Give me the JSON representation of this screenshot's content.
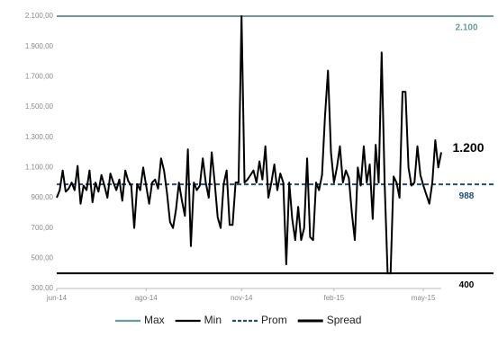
{
  "chart_data": {
    "type": "line",
    "categories": [
      "jun-14",
      null,
      null,
      null,
      null,
      null,
      null,
      null,
      null,
      null,
      null,
      null,
      null,
      null,
      null,
      null,
      null,
      null,
      null,
      null,
      null,
      null,
      null,
      null,
      null,
      null,
      null,
      null,
      null,
      null,
      "ago-14",
      null,
      null,
      null,
      null,
      null,
      null,
      null,
      null,
      null,
      null,
      null,
      null,
      null,
      null,
      null,
      null,
      null,
      null,
      null,
      null,
      null,
      null,
      null,
      null,
      null,
      null,
      null,
      null,
      null,
      null,
      null,
      "nov-14",
      null,
      null,
      null,
      null,
      null,
      null,
      null,
      null,
      null,
      null,
      null,
      null,
      null,
      null,
      null,
      null,
      null,
      null,
      null,
      null,
      null,
      null,
      null,
      null,
      null,
      null,
      null,
      null,
      null,
      null,
      "feb-15",
      null,
      null,
      null,
      null,
      null,
      null,
      null,
      null,
      null,
      null,
      null,
      null,
      null,
      null,
      null,
      null,
      null,
      null,
      null,
      null,
      null,
      null,
      null,
      null,
      null,
      null,
      null,
      null,
      null,
      "may-15",
      null,
      null,
      null,
      null,
      null,
      null
    ],
    "series": [
      {
        "name": "Spread",
        "color": "#000000",
        "values": [
          900,
          950,
          1080,
          940,
          960,
          1000,
          950,
          1110,
          860,
          980,
          950,
          1080,
          870,
          1000,
          940,
          1050,
          980,
          900,
          1060,
          1000,
          950,
          1020,
          880,
          1080,
          1010,
          980,
          700,
          990,
          950,
          1100,
          980,
          860,
          1000,
          1020,
          960,
          1160,
          1080,
          930,
          740,
          700,
          820,
          1000,
          880,
          780,
          1220,
          580,
          1000,
          950,
          980,
          1160,
          1000,
          900,
          1200,
          1000,
          770,
          700,
          990,
          1080,
          720,
          720,
          1000,
          1000,
          2100,
          1000,
          1020,
          1050,
          1080,
          1000,
          1140,
          1020,
          1240,
          900,
          1000,
          1120,
          950,
          1060,
          1000,
          460,
          1000,
          760,
          620,
          840,
          620,
          700,
          1160,
          640,
          620,
          1000,
          950,
          1050,
          1440,
          1740,
          1200,
          1000,
          1100,
          1240,
          1000,
          1080,
          1030,
          800,
          620,
          1100,
          980,
          1240,
          1000,
          1120,
          760,
          1250,
          1000,
          1860,
          1000,
          400,
          400,
          1040,
          1000,
          900,
          1600,
          1600,
          1100,
          980,
          1000,
          1240,
          1050,
          980,
          920,
          860,
          1000,
          1280,
          1100,
          1200
        ]
      }
    ],
    "reference_lines": [
      {
        "name": "Max",
        "color": "#6b9a9c",
        "value": 2100,
        "label": "2.100",
        "dashed": false
      },
      {
        "name": "Min",
        "color": "#000000",
        "value": 400,
        "label": "400",
        "dashed": false
      },
      {
        "name": "Prom",
        "color": "#1f4e79",
        "value": 988,
        "label": "988",
        "dashed": true
      }
    ],
    "last_value_label": "1.200",
    "ylim": [
      300,
      2100
    ],
    "yticks": [
      {
        "value": 300,
        "label": "300,00"
      },
      {
        "value": 500,
        "label": "500,00"
      },
      {
        "value": 700,
        "label": "700,00"
      },
      {
        "value": 900,
        "label": "900,00"
      },
      {
        "value": 1100,
        "label": "1.100,00"
      },
      {
        "value": 1300,
        "label": "1.300,00"
      },
      {
        "value": 1500,
        "label": "1.500,00"
      },
      {
        "value": 1700,
        "label": "1.700,00"
      },
      {
        "value": 1900,
        "label": "1.900,00"
      },
      {
        "value": 2100,
        "label": "2.100,00"
      }
    ],
    "grid": false
  }
}
